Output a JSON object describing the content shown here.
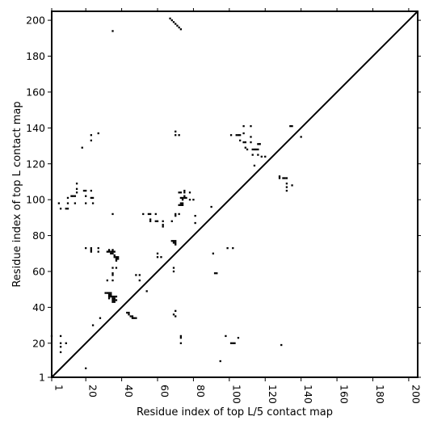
{
  "chart_data": {
    "type": "scatter",
    "xlabel": "Residue index of top L/5 contact map",
    "ylabel": "Residue index of top L contact map",
    "xlim": [
      1,
      205
    ],
    "ylim": [
      1,
      205
    ],
    "x_ticks": [
      {
        "value": 1,
        "label": "1"
      },
      {
        "value": 20,
        "label": "20"
      },
      {
        "value": 40,
        "label": "40"
      },
      {
        "value": 60,
        "label": "60"
      },
      {
        "value": 80,
        "label": "80"
      },
      {
        "value": 100,
        "label": "100"
      },
      {
        "value": 120,
        "label": "120"
      },
      {
        "value": 140,
        "label": "140"
      },
      {
        "value": 160,
        "label": "160"
      },
      {
        "value": 180,
        "label": "180"
      },
      {
        "value": 200,
        "label": "200"
      }
    ],
    "y_ticks": [
      {
        "value": 1,
        "label": "1"
      },
      {
        "value": 20,
        "label": "20"
      },
      {
        "value": 40,
        "label": "40"
      },
      {
        "value": 60,
        "label": "60"
      },
      {
        "value": 80,
        "label": "80"
      },
      {
        "value": 100,
        "label": "100"
      },
      {
        "value": 120,
        "label": "120"
      },
      {
        "value": 140,
        "label": "140"
      },
      {
        "value": 160,
        "label": "160"
      },
      {
        "value": 180,
        "label": "180"
      },
      {
        "value": 200,
        "label": "200"
      }
    ],
    "diagonal": [
      [
        1,
        1
      ],
      [
        205,
        205
      ]
    ],
    "mark_color": "#000000",
    "grid": false,
    "points": [
      [
        1,
        24
      ],
      [
        6,
        24
      ],
      [
        6,
        20
      ],
      [
        6,
        18
      ],
      [
        6,
        15
      ],
      [
        9,
        20
      ],
      [
        20,
        6
      ],
      [
        5,
        98
      ],
      [
        6,
        95
      ],
      [
        9,
        95
      ],
      [
        10,
        95
      ],
      [
        10,
        98
      ],
      [
        10,
        101
      ],
      [
        12,
        102
      ],
      [
        13,
        102
      ],
      [
        14,
        102
      ],
      [
        14,
        98
      ],
      [
        15,
        106
      ],
      [
        15,
        104
      ],
      [
        15,
        109
      ],
      [
        19,
        105
      ],
      [
        20,
        105
      ],
      [
        20,
        102
      ],
      [
        20,
        98
      ],
      [
        20,
        73
      ],
      [
        23,
        73
      ],
      [
        23,
        72
      ],
      [
        23,
        71
      ],
      [
        27,
        73
      ],
      [
        27,
        71
      ],
      [
        23,
        101
      ],
      [
        24,
        101
      ],
      [
        24,
        98
      ],
      [
        23,
        105
      ],
      [
        23,
        133
      ],
      [
        23,
        136
      ],
      [
        18,
        129
      ],
      [
        27,
        137
      ],
      [
        24,
        30
      ],
      [
        28,
        34
      ],
      [
        31,
        48
      ],
      [
        32,
        48
      ],
      [
        33,
        48
      ],
      [
        34,
        48
      ],
      [
        33,
        47
      ],
      [
        34,
        47
      ],
      [
        33,
        46
      ],
      [
        34,
        46
      ],
      [
        33,
        45
      ],
      [
        35,
        45
      ],
      [
        36,
        45
      ],
      [
        35,
        46
      ],
      [
        36,
        46
      ],
      [
        37,
        46
      ],
      [
        35,
        44
      ],
      [
        36,
        44
      ],
      [
        37,
        44
      ],
      [
        35,
        43
      ],
      [
        36,
        43
      ],
      [
        32,
        55
      ],
      [
        35,
        55
      ],
      [
        35,
        58
      ],
      [
        35,
        59
      ],
      [
        35,
        62
      ],
      [
        37,
        62
      ],
      [
        32,
        71
      ],
      [
        33,
        71
      ],
      [
        34,
        71
      ],
      [
        33,
        72
      ],
      [
        34,
        70
      ],
      [
        35,
        70
      ],
      [
        35,
        71
      ],
      [
        35,
        72
      ],
      [
        36,
        71
      ],
      [
        36,
        69
      ],
      [
        36,
        68
      ],
      [
        37,
        67
      ],
      [
        37,
        68
      ],
      [
        38,
        68
      ],
      [
        38,
        67
      ],
      [
        37,
        66
      ],
      [
        35,
        92
      ],
      [
        35,
        194
      ],
      [
        43,
        37
      ],
      [
        44,
        37
      ],
      [
        44,
        36
      ],
      [
        45,
        35
      ],
      [
        46,
        35
      ],
      [
        46,
        34
      ],
      [
        47,
        34
      ],
      [
        48,
        34
      ],
      [
        48,
        58
      ],
      [
        50,
        58
      ],
      [
        50,
        55
      ],
      [
        54,
        49
      ],
      [
        52,
        92
      ],
      [
        55,
        92
      ],
      [
        56,
        92
      ],
      [
        56,
        89
      ],
      [
        56,
        88
      ],
      [
        59,
        92
      ],
      [
        59,
        88
      ],
      [
        60,
        88
      ],
      [
        60,
        68
      ],
      [
        60,
        70
      ],
      [
        62,
        68
      ],
      [
        63,
        88
      ],
      [
        63,
        86
      ],
      [
        63,
        85
      ],
      [
        67,
        201
      ],
      [
        68,
        200
      ],
      [
        69,
        199
      ],
      [
        70,
        198
      ],
      [
        71,
        197
      ],
      [
        72,
        196
      ],
      [
        73,
        195
      ],
      [
        68,
        77
      ],
      [
        69,
        77
      ],
      [
        70,
        77
      ],
      [
        70,
        76
      ],
      [
        70,
        75
      ],
      [
        69,
        76
      ],
      [
        69,
        62
      ],
      [
        69,
        60
      ],
      [
        68,
        88
      ],
      [
        70,
        91
      ],
      [
        70,
        92
      ],
      [
        69,
        36
      ],
      [
        70,
        35
      ],
      [
        70,
        38
      ],
      [
        70,
        136
      ],
      [
        70,
        138
      ],
      [
        72,
        136
      ],
      [
        72,
        97
      ],
      [
        73,
        97
      ],
      [
        74,
        97
      ],
      [
        73,
        98
      ],
      [
        74,
        98
      ],
      [
        74,
        100
      ],
      [
        73,
        101
      ],
      [
        74,
        101
      ],
      [
        75,
        101
      ],
      [
        76,
        101
      ],
      [
        75,
        102
      ],
      [
        75,
        104
      ],
      [
        75,
        105
      ],
      [
        73,
        104
      ],
      [
        72,
        104
      ],
      [
        72,
        92
      ],
      [
        73,
        24
      ],
      [
        73,
        23
      ],
      [
        73,
        20
      ],
      [
        78,
        100
      ],
      [
        78,
        104
      ],
      [
        80,
        100
      ],
      [
        81,
        91
      ],
      [
        81,
        87
      ],
      [
        90,
        96
      ],
      [
        91,
        70
      ],
      [
        92,
        59
      ],
      [
        93,
        59
      ],
      [
        95,
        10
      ],
      [
        98,
        24
      ],
      [
        99,
        73
      ],
      [
        102,
        73
      ],
      [
        101,
        20
      ],
      [
        102,
        20
      ],
      [
        103,
        20
      ],
      [
        105,
        23
      ],
      [
        101,
        136
      ],
      [
        104,
        136
      ],
      [
        105,
        136
      ],
      [
        106,
        133
      ],
      [
        106,
        136
      ],
      [
        108,
        132
      ],
      [
        108,
        137
      ],
      [
        108,
        141
      ],
      [
        109,
        129
      ],
      [
        109,
        132
      ],
      [
        110,
        128
      ],
      [
        112,
        132
      ],
      [
        112,
        135
      ],
      [
        112,
        141
      ],
      [
        113,
        128
      ],
      [
        114,
        128
      ],
      [
        115,
        128
      ],
      [
        116,
        125
      ],
      [
        116,
        128
      ],
      [
        116,
        131
      ],
      [
        117,
        131
      ],
      [
        113,
        125
      ],
      [
        114,
        119
      ],
      [
        117,
        131
      ],
      [
        118,
        124
      ],
      [
        120,
        124
      ],
      [
        128,
        112
      ],
      [
        128,
        113
      ],
      [
        130,
        112
      ],
      [
        131,
        112
      ],
      [
        132,
        112
      ],
      [
        132,
        109
      ],
      [
        132,
        107
      ],
      [
        132,
        105
      ],
      [
        135,
        108
      ],
      [
        134,
        141
      ],
      [
        135,
        141
      ],
      [
        140,
        135
      ],
      [
        129,
        19
      ]
    ]
  }
}
